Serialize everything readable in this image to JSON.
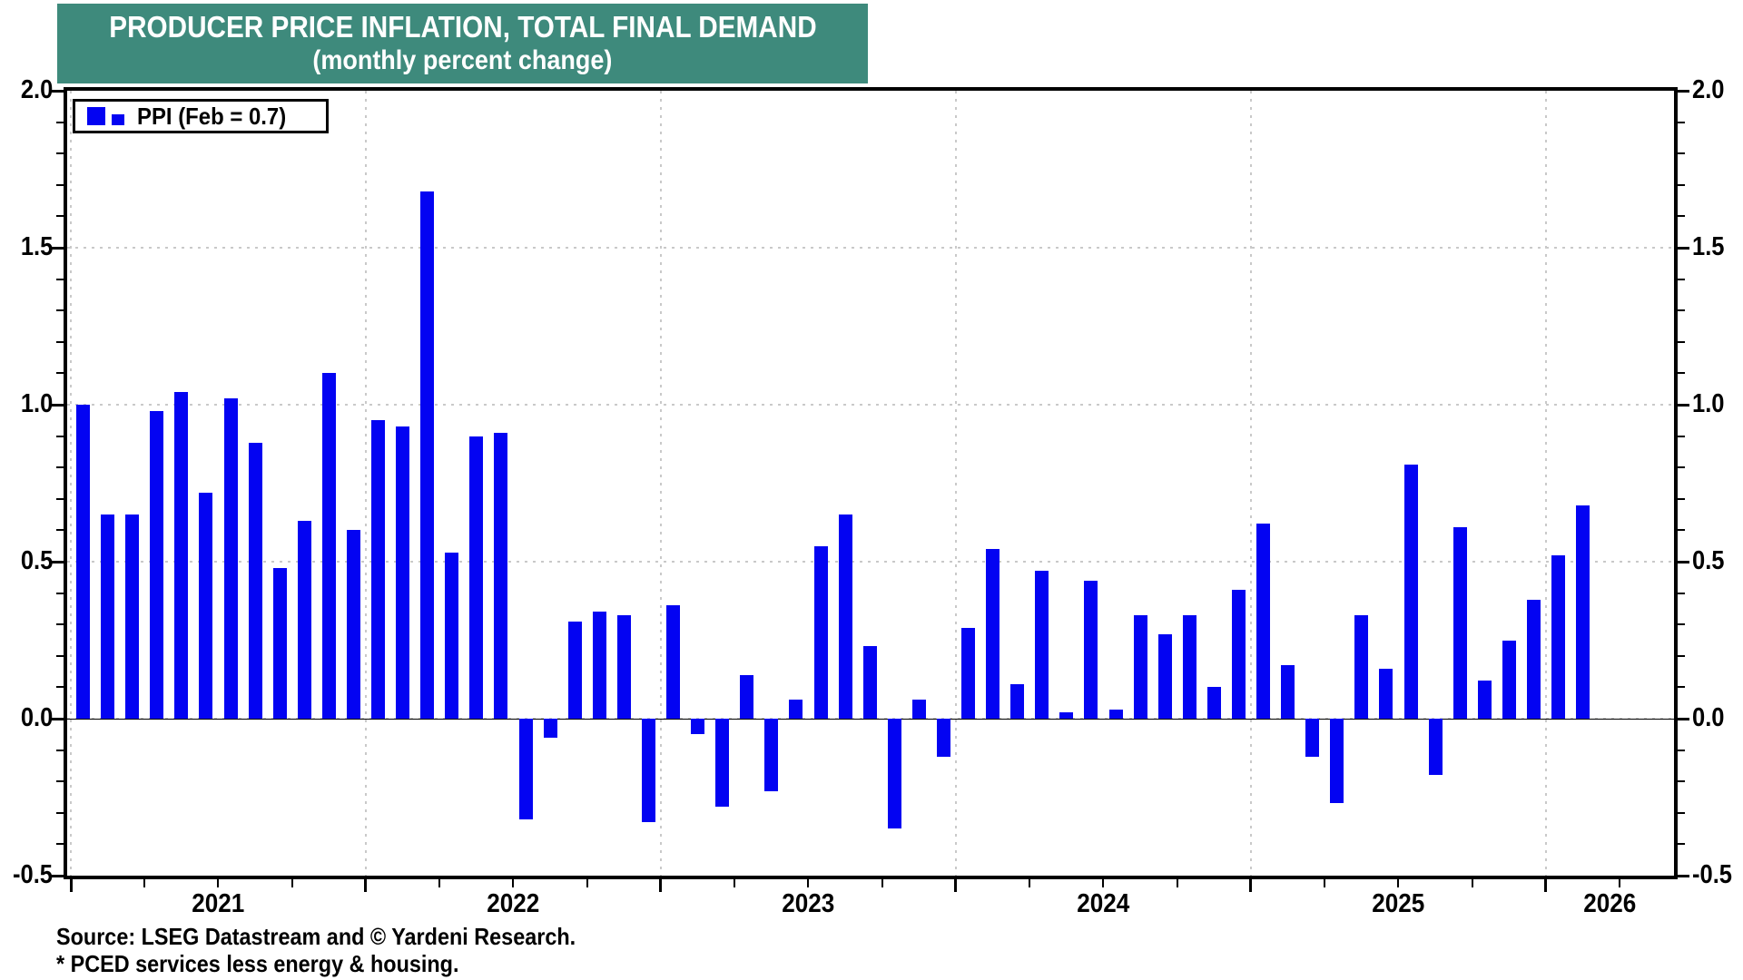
{
  "header": {
    "title": "PRODUCER PRICE INFLATION, TOTAL FINAL DEMAND",
    "subtitle": "(monthly percent change)",
    "banner_color": "#3E8A7C"
  },
  "legend": {
    "label": "PPI (Feb = 0.7)"
  },
  "footer": {
    "source": "Source: LSEG Datastream and © Yardeni Research.",
    "note": "* PCED services less energy & housing."
  },
  "chart_data": {
    "type": "bar",
    "title": "PRODUCER PRICE INFLATION, TOTAL FINAL DEMAND",
    "subtitle": "(monthly percent change)",
    "xlabel": "",
    "ylabel": "",
    "ylim": [
      -0.5,
      2.0
    ],
    "ytick_step": 0.5,
    "ytick_labels": [
      "2.0",
      "1.5",
      "1.0",
      "0.5",
      "0.0",
      "-0.5"
    ],
    "minor_ytick_step": 0.1,
    "grid": "dotted",
    "gridline_color": "#c9c9c9",
    "bar_color": "#0303F2",
    "legend_position": "top-left",
    "year_labels": [
      "2021",
      "2022",
      "2023",
      "2024",
      "2025",
      "2026"
    ],
    "x_start_month": "2021-01",
    "x_end_month": "2026-02",
    "series": [
      {
        "name": "PPI (Feb = 0.7)",
        "months": [
          "2021-01",
          "2021-02",
          "2021-03",
          "2021-04",
          "2021-05",
          "2021-06",
          "2021-07",
          "2021-08",
          "2021-09",
          "2021-10",
          "2021-11",
          "2021-12",
          "2022-01",
          "2022-02",
          "2022-03",
          "2022-04",
          "2022-05",
          "2022-06",
          "2022-07",
          "2022-08",
          "2022-09",
          "2022-10",
          "2022-11",
          "2022-12",
          "2023-01",
          "2023-02",
          "2023-03",
          "2023-04",
          "2023-05",
          "2023-06",
          "2023-07",
          "2023-08",
          "2023-09",
          "2023-10",
          "2023-11",
          "2023-12",
          "2024-01",
          "2024-02",
          "2024-03",
          "2024-04",
          "2024-05",
          "2024-06",
          "2024-07",
          "2024-08",
          "2024-09",
          "2024-10",
          "2024-11",
          "2024-12",
          "2025-01",
          "2025-02",
          "2025-03",
          "2025-04",
          "2025-05",
          "2025-06",
          "2025-07",
          "2025-08",
          "2025-09",
          "2025-10",
          "2025-11",
          "2025-12",
          "2026-01",
          "2026-02"
        ],
        "values": [
          1.0,
          0.65,
          0.65,
          0.98,
          1.04,
          0.72,
          1.02,
          0.88,
          0.48,
          0.63,
          1.1,
          0.6,
          0.95,
          0.93,
          1.68,
          0.53,
          0.9,
          0.91,
          -0.32,
          -0.06,
          0.31,
          0.34,
          0.33,
          -0.33,
          0.36,
          -0.05,
          -0.28,
          0.14,
          -0.23,
          0.06,
          0.55,
          0.65,
          0.23,
          -0.35,
          0.06,
          -0.12,
          0.29,
          0.54,
          0.11,
          0.47,
          0.02,
          0.44,
          0.03,
          0.33,
          0.27,
          0.33,
          0.1,
          0.41,
          0.62,
          0.17,
          -0.12,
          -0.27,
          0.33,
          0.16,
          0.81,
          -0.18,
          0.61,
          0.12,
          0.25,
          0.38,
          0.52,
          0.68
        ]
      }
    ]
  }
}
